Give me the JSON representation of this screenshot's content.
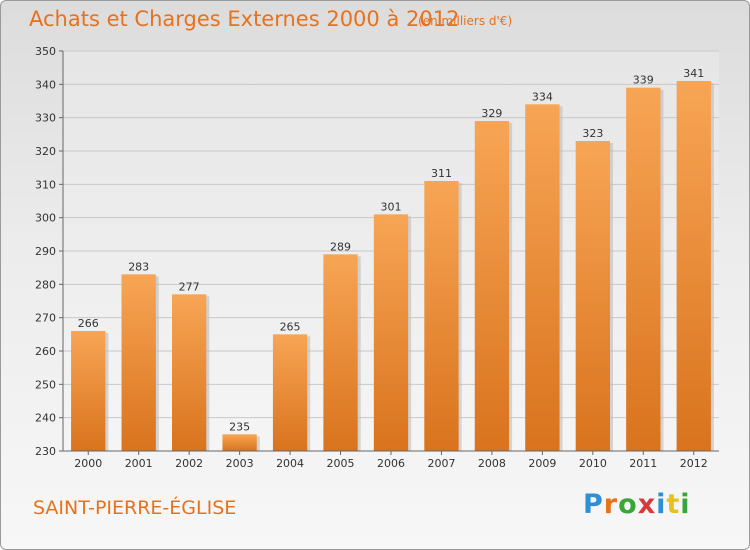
{
  "page": {
    "title": "Achats et Charges Externes 2000 à 2012",
    "subtitle": "(en milliers d'€)",
    "commune": "SAINT-PIERRE-ÉGLISE",
    "logo": {
      "letters": [
        "P",
        "r",
        "o",
        "x",
        "i",
        "t",
        "i"
      ],
      "colors": [
        "#2e8fd4",
        "#e8721c",
        "#3aa63a",
        "#d63a3a",
        "#2e8fd4",
        "#e8c21c",
        "#3aa63a"
      ]
    }
  },
  "chart_data": {
    "type": "bar",
    "categories": [
      "2000",
      "2001",
      "2002",
      "2003",
      "2004",
      "2005",
      "2006",
      "2007",
      "2008",
      "2009",
      "2010",
      "2011",
      "2012"
    ],
    "values": [
      266,
      283,
      277,
      235,
      265,
      289,
      301,
      311,
      329,
      334,
      323,
      339,
      341
    ],
    "ylim": [
      230,
      350
    ],
    "yticks": [
      230,
      240,
      250,
      260,
      270,
      280,
      290,
      300,
      310,
      320,
      330,
      340,
      350
    ],
    "grid": true,
    "bar_color_top": "#f7a555",
    "bar_color_bottom": "#d9731d",
    "xlabel": "",
    "ylabel": ""
  }
}
